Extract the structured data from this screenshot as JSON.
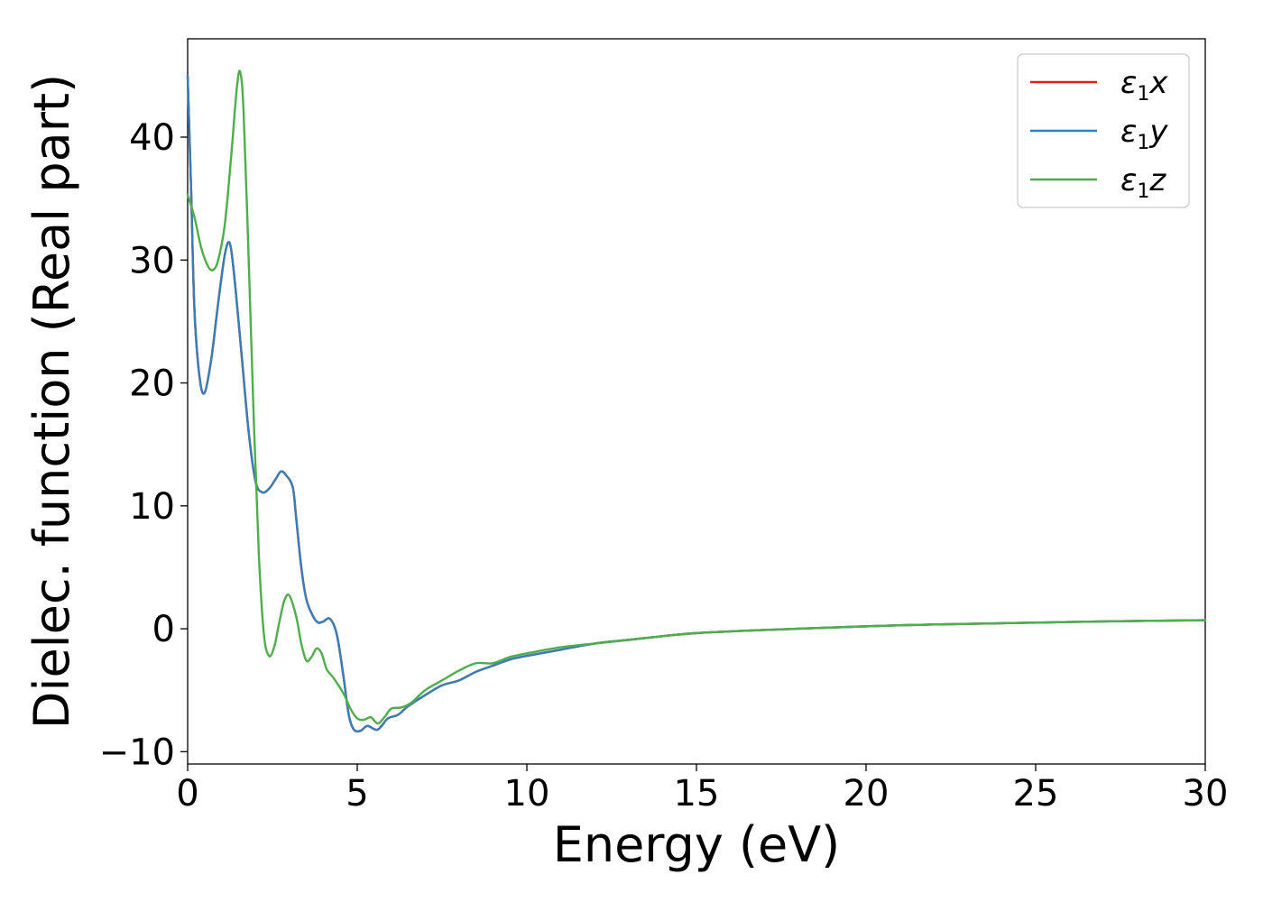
{
  "chart_data": {
    "type": "line",
    "title": "",
    "xlabel": "Energy (eV)",
    "ylabel": "Dielec. function (Real part)",
    "xlim": [
      0,
      30
    ],
    "ylim": [
      -11,
      48
    ],
    "x_ticks": [
      0,
      5,
      10,
      15,
      20,
      25,
      30
    ],
    "y_ticks": [
      -10,
      0,
      10,
      20,
      30,
      40
    ],
    "x_tick_labels": [
      "0",
      "5",
      "10",
      "15",
      "20",
      "25",
      "30"
    ],
    "y_tick_labels": [
      "−10",
      "0",
      "10",
      "20",
      "30",
      "40"
    ],
    "grid": false,
    "legend_position": "top-right",
    "series": [
      {
        "name": "ε1x",
        "legend": {
          "base": "ε",
          "sub": "1",
          "var": "x"
        },
        "color": "#e41a1c",
        "points": [
          [
            0,
            45
          ],
          [
            0.1,
            36
          ],
          [
            0.2,
            26
          ],
          [
            0.35,
            20.5
          ],
          [
            0.5,
            19.2
          ],
          [
            0.7,
            22
          ],
          [
            0.9,
            26.5
          ],
          [
            1.1,
            30.5
          ],
          [
            1.25,
            31.3
          ],
          [
            1.4,
            28
          ],
          [
            1.6,
            22
          ],
          [
            1.8,
            16
          ],
          [
            2.0,
            12
          ],
          [
            2.2,
            11.1
          ],
          [
            2.4,
            11.4
          ],
          [
            2.6,
            12.2
          ],
          [
            2.75,
            12.8
          ],
          [
            2.9,
            12.5
          ],
          [
            3.1,
            11.5
          ],
          [
            3.2,
            9
          ],
          [
            3.35,
            5
          ],
          [
            3.5,
            2.4
          ],
          [
            3.7,
            1
          ],
          [
            3.85,
            0.5
          ],
          [
            4.0,
            0.6
          ],
          [
            4.2,
            0.8
          ],
          [
            4.4,
            -0.5
          ],
          [
            4.6,
            -4
          ],
          [
            4.75,
            -7
          ],
          [
            4.9,
            -8.2
          ],
          [
            5.1,
            -8.3
          ],
          [
            5.3,
            -7.9
          ],
          [
            5.6,
            -8.2
          ],
          [
            5.9,
            -7.3
          ],
          [
            6.2,
            -7.0
          ],
          [
            6.5,
            -6.3
          ],
          [
            7.0,
            -5.4
          ],
          [
            7.5,
            -4.6
          ],
          [
            8.0,
            -4.2
          ],
          [
            8.5,
            -3.5
          ],
          [
            9.0,
            -3.0
          ],
          [
            9.5,
            -2.5
          ],
          [
            10,
            -2.2
          ],
          [
            11,
            -1.7
          ],
          [
            12,
            -1.2
          ],
          [
            13,
            -0.9
          ],
          [
            14,
            -0.6
          ],
          [
            15,
            -0.35
          ],
          [
            17,
            -0.1
          ],
          [
            20,
            0.2
          ],
          [
            22,
            0.35
          ],
          [
            25,
            0.5
          ],
          [
            27,
            0.6
          ],
          [
            30,
            0.7
          ]
        ]
      },
      {
        "name": "ε1y",
        "legend": {
          "base": "ε",
          "sub": "1",
          "var": "y"
        },
        "color": "#377eb8",
        "points": [
          [
            0,
            45
          ],
          [
            0.1,
            36
          ],
          [
            0.2,
            26
          ],
          [
            0.35,
            20.5
          ],
          [
            0.5,
            19.2
          ],
          [
            0.7,
            22
          ],
          [
            0.9,
            26.5
          ],
          [
            1.1,
            30.5
          ],
          [
            1.25,
            31.3
          ],
          [
            1.4,
            28
          ],
          [
            1.6,
            22
          ],
          [
            1.8,
            16
          ],
          [
            2.0,
            12
          ],
          [
            2.2,
            11.1
          ],
          [
            2.4,
            11.4
          ],
          [
            2.6,
            12.2
          ],
          [
            2.75,
            12.8
          ],
          [
            2.9,
            12.5
          ],
          [
            3.1,
            11.5
          ],
          [
            3.2,
            9
          ],
          [
            3.35,
            5
          ],
          [
            3.5,
            2.4
          ],
          [
            3.7,
            1
          ],
          [
            3.85,
            0.5
          ],
          [
            4.0,
            0.6
          ],
          [
            4.2,
            0.8
          ],
          [
            4.4,
            -0.5
          ],
          [
            4.6,
            -4
          ],
          [
            4.75,
            -7
          ],
          [
            4.9,
            -8.2
          ],
          [
            5.1,
            -8.3
          ],
          [
            5.3,
            -7.9
          ],
          [
            5.6,
            -8.2
          ],
          [
            5.9,
            -7.3
          ],
          [
            6.2,
            -7.0
          ],
          [
            6.5,
            -6.3
          ],
          [
            7.0,
            -5.4
          ],
          [
            7.5,
            -4.6
          ],
          [
            8.0,
            -4.2
          ],
          [
            8.5,
            -3.5
          ],
          [
            9.0,
            -3.0
          ],
          [
            9.5,
            -2.5
          ],
          [
            10,
            -2.2
          ],
          [
            11,
            -1.7
          ],
          [
            12,
            -1.2
          ],
          [
            13,
            -0.9
          ],
          [
            14,
            -0.6
          ],
          [
            15,
            -0.35
          ],
          [
            17,
            -0.1
          ],
          [
            20,
            0.2
          ],
          [
            22,
            0.35
          ],
          [
            25,
            0.5
          ],
          [
            27,
            0.6
          ],
          [
            30,
            0.7
          ]
        ]
      },
      {
        "name": "ε1z",
        "legend": {
          "base": "ε",
          "sub": "1",
          "var": "z"
        },
        "color": "#4daf4a",
        "points": [
          [
            0,
            35.3
          ],
          [
            0.2,
            33.5
          ],
          [
            0.4,
            31
          ],
          [
            0.6,
            29.5
          ],
          [
            0.75,
            29.2
          ],
          [
            0.9,
            30
          ],
          [
            1.1,
            33
          ],
          [
            1.3,
            39
          ],
          [
            1.45,
            44
          ],
          [
            1.55,
            45.3
          ],
          [
            1.65,
            42
          ],
          [
            1.8,
            30
          ],
          [
            1.95,
            17
          ],
          [
            2.1,
            6
          ],
          [
            2.25,
            -0.5
          ],
          [
            2.4,
            -2.2
          ],
          [
            2.55,
            -1.5
          ],
          [
            2.7,
            0.5
          ],
          [
            2.85,
            2.3
          ],
          [
            3.0,
            2.7
          ],
          [
            3.2,
            1
          ],
          [
            3.35,
            -1.2
          ],
          [
            3.5,
            -2.6
          ],
          [
            3.65,
            -2.3
          ],
          [
            3.8,
            -1.6
          ],
          [
            3.95,
            -2
          ],
          [
            4.1,
            -3.3
          ],
          [
            4.3,
            -4
          ],
          [
            4.6,
            -5.3
          ],
          [
            4.8,
            -6.5
          ],
          [
            5.0,
            -7.3
          ],
          [
            5.2,
            -7.4
          ],
          [
            5.4,
            -7.2
          ],
          [
            5.6,
            -7.7
          ],
          [
            5.8,
            -7.2
          ],
          [
            6.0,
            -6.5
          ],
          [
            6.3,
            -6.4
          ],
          [
            6.6,
            -6.0
          ],
          [
            7.0,
            -5.0
          ],
          [
            7.5,
            -4.2
          ],
          [
            8.0,
            -3.4
          ],
          [
            8.5,
            -2.8
          ],
          [
            9.0,
            -2.8
          ],
          [
            9.5,
            -2.3
          ],
          [
            10,
            -2.0
          ],
          [
            11,
            -1.5
          ],
          [
            12,
            -1.2
          ],
          [
            13,
            -0.9
          ],
          [
            14,
            -0.6
          ],
          [
            15,
            -0.35
          ],
          [
            17,
            -0.1
          ],
          [
            20,
            0.2
          ],
          [
            22,
            0.35
          ],
          [
            25,
            0.5
          ],
          [
            27,
            0.6
          ],
          [
            30,
            0.7
          ]
        ]
      }
    ]
  }
}
